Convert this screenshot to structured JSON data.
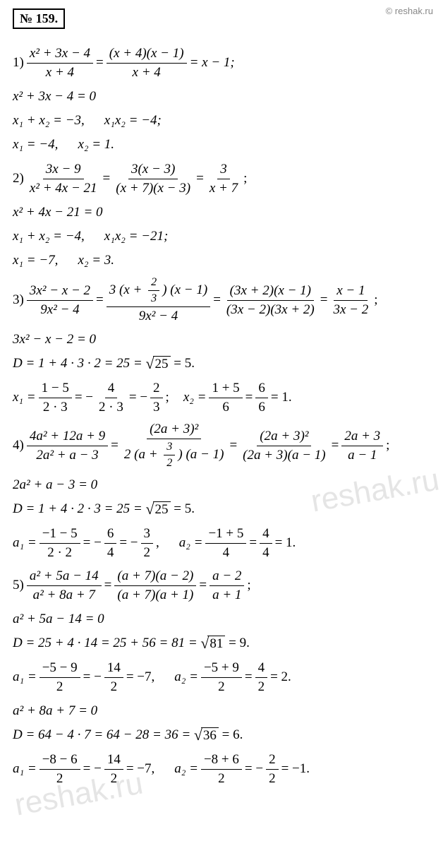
{
  "header": {
    "problem_number": "№ 159.",
    "copyright": "© reshak.ru",
    "watermark": "reshak.ru"
  },
  "colors": {
    "text": "#000000",
    "watermark": "rgba(180,180,180,0.35)",
    "copyright": "#888888",
    "background": "#ffffff"
  },
  "p1": {
    "lead": "1)",
    "f1n": "x² + 3x − 4",
    "f1d": "x + 4",
    "eq1": "=",
    "f2n": "(x + 4)(x − 1)",
    "f2d": "x + 4",
    "tail": "= x − 1;",
    "l2": "x² + 3x − 4 = 0",
    "l3a": "x₁ + x₂ = −3,",
    "l3b": "x₁x₂ = −4;",
    "l4a": "x₁ = −4,",
    "l4b": "x₂ = 1."
  },
  "p2": {
    "lead": "2)",
    "f1n": "3x − 9",
    "f1d": "x² + 4x − 21",
    "eq1": "=",
    "f2n": "3(x − 3)",
    "f2d": "(x + 7)(x − 3)",
    "eq2": "=",
    "f3n": "3",
    "f3d": "x + 7",
    "tail": ";",
    "l2": "x² + 4x − 21 = 0",
    "l3a": "x₁ + x₂ = −4,",
    "l3b": "x₁x₂ = −21;",
    "l4a": "x₁ = −7,",
    "l4b": "x₂ = 3."
  },
  "p3": {
    "lead": "3)",
    "f1n": "3x² − x − 2",
    "f1d": "9x² − 4",
    "eq1": "=",
    "f2n_pre": "3 (x + ",
    "f2n_fn": "2",
    "f2n_fd": "3",
    "f2n_post": ") (x − 1)",
    "f2d": "9x² − 4",
    "eq2": "=",
    "f3n": "(3x + 2)(x − 1)",
    "f3d": "(3x − 2)(3x + 2)",
    "eq3": "=",
    "f4n": "x − 1",
    "f4d": "3x − 2",
    "tail": ";",
    "l2": "3x² − x − 2 = 0",
    "l3a": "D = 1 + 4 · 3 · 2 = 25 =",
    "l3sqrt": "25",
    "l3b": "= 5.",
    "l4_lead": "x₁ =",
    "l4_f1n": "1 − 5",
    "l4_f1d": "2 · 3",
    "l4_a": "= −",
    "l4_f2n": "4",
    "l4_f2d": "2 · 3",
    "l4_b": "= −",
    "l4_f3n": "2",
    "l4_f3d": "3",
    "l4_c": ";",
    "l4_x2": "x₂ =",
    "l4_f4n": "1 + 5",
    "l4_f4d": "6",
    "l4_d": "=",
    "l4_f5n": "6",
    "l4_f5d": "6",
    "l4_e": "= 1."
  },
  "p4": {
    "lead": "4)",
    "f1n": "4a² + 12a + 9",
    "f1d": "2a² + a − 3",
    "eq1": "=",
    "f2n": "(2a + 3)²",
    "f2d_pre": "2 (a + ",
    "f2d_fn": "3",
    "f2d_fd": "2",
    "f2d_post": ") (a − 1)",
    "eq2": "=",
    "f3n": "(2a + 3)²",
    "f3d": "(2a + 3)(a − 1)",
    "eq3": "=",
    "f4n": "2a + 3",
    "f4d": "a − 1",
    "tail": ";",
    "l2": "2a² + a − 3 = 0",
    "l3a": "D = 1 + 4 · 2 · 3 = 25 =",
    "l3sqrt": "25",
    "l3b": "= 5.",
    "l4_lead": "a₁ =",
    "l4_f1n": "−1 − 5",
    "l4_f1d": "2 · 2",
    "l4_a": "= −",
    "l4_f2n": "6",
    "l4_f2d": "4",
    "l4_b": "= −",
    "l4_f3n": "3",
    "l4_f3d": "2",
    "l4_c": ",",
    "l4_a2": "a₂ =",
    "l4_f4n": "−1 + 5",
    "l4_f4d": "4",
    "l4_d": "=",
    "l4_f5n": "4",
    "l4_f5d": "4",
    "l4_e": "= 1."
  },
  "p5": {
    "lead": "5)",
    "f1n": "a² + 5a − 14",
    "f1d": "a² + 8a + 7",
    "eq1": "=",
    "f2n": "(a + 7)(a − 2)",
    "f2d": "(a + 7)(a + 1)",
    "eq2": "=",
    "f3n": "a − 2",
    "f3d": "a + 1",
    "tail": ";",
    "l2": "a² + 5a − 14 = 0",
    "l3a": "D = 25 + 4 · 14 = 25 + 56 = 81 =",
    "l3sqrt": "81",
    "l3b": "= 9.",
    "l4_lead": "a₁ =",
    "l4_f1n": "−5 − 9",
    "l4_f1d": "2",
    "l4_a": "= −",
    "l4_f2n": "14",
    "l4_f2d": "2",
    "l4_b": "= −7,",
    "l4_a2": "a₂ =",
    "l4_f3n": "−5 + 9",
    "l4_f3d": "2",
    "l4_c": "=",
    "l4_f4n": "4",
    "l4_f4d": "2",
    "l4_d": "= 2.",
    "l5": "a² + 8a + 7 = 0",
    "l6a": "D = 64 − 4 · 7 = 64 − 28 = 36 =",
    "l6sqrt": "36",
    "l6b": "= 6.",
    "l7_lead": "a₁ =",
    "l7_f1n": "−8 − 6",
    "l7_f1d": "2",
    "l7_a": "= −",
    "l7_f2n": "14",
    "l7_f2d": "2",
    "l7_b": "= −7,",
    "l7_a2": "a₂ =",
    "l7_f3n": "−8 + 6",
    "l7_f3d": "2",
    "l7_c": "= −",
    "l7_f4n": "2",
    "l7_f4d": "2",
    "l7_d": "= −1."
  }
}
